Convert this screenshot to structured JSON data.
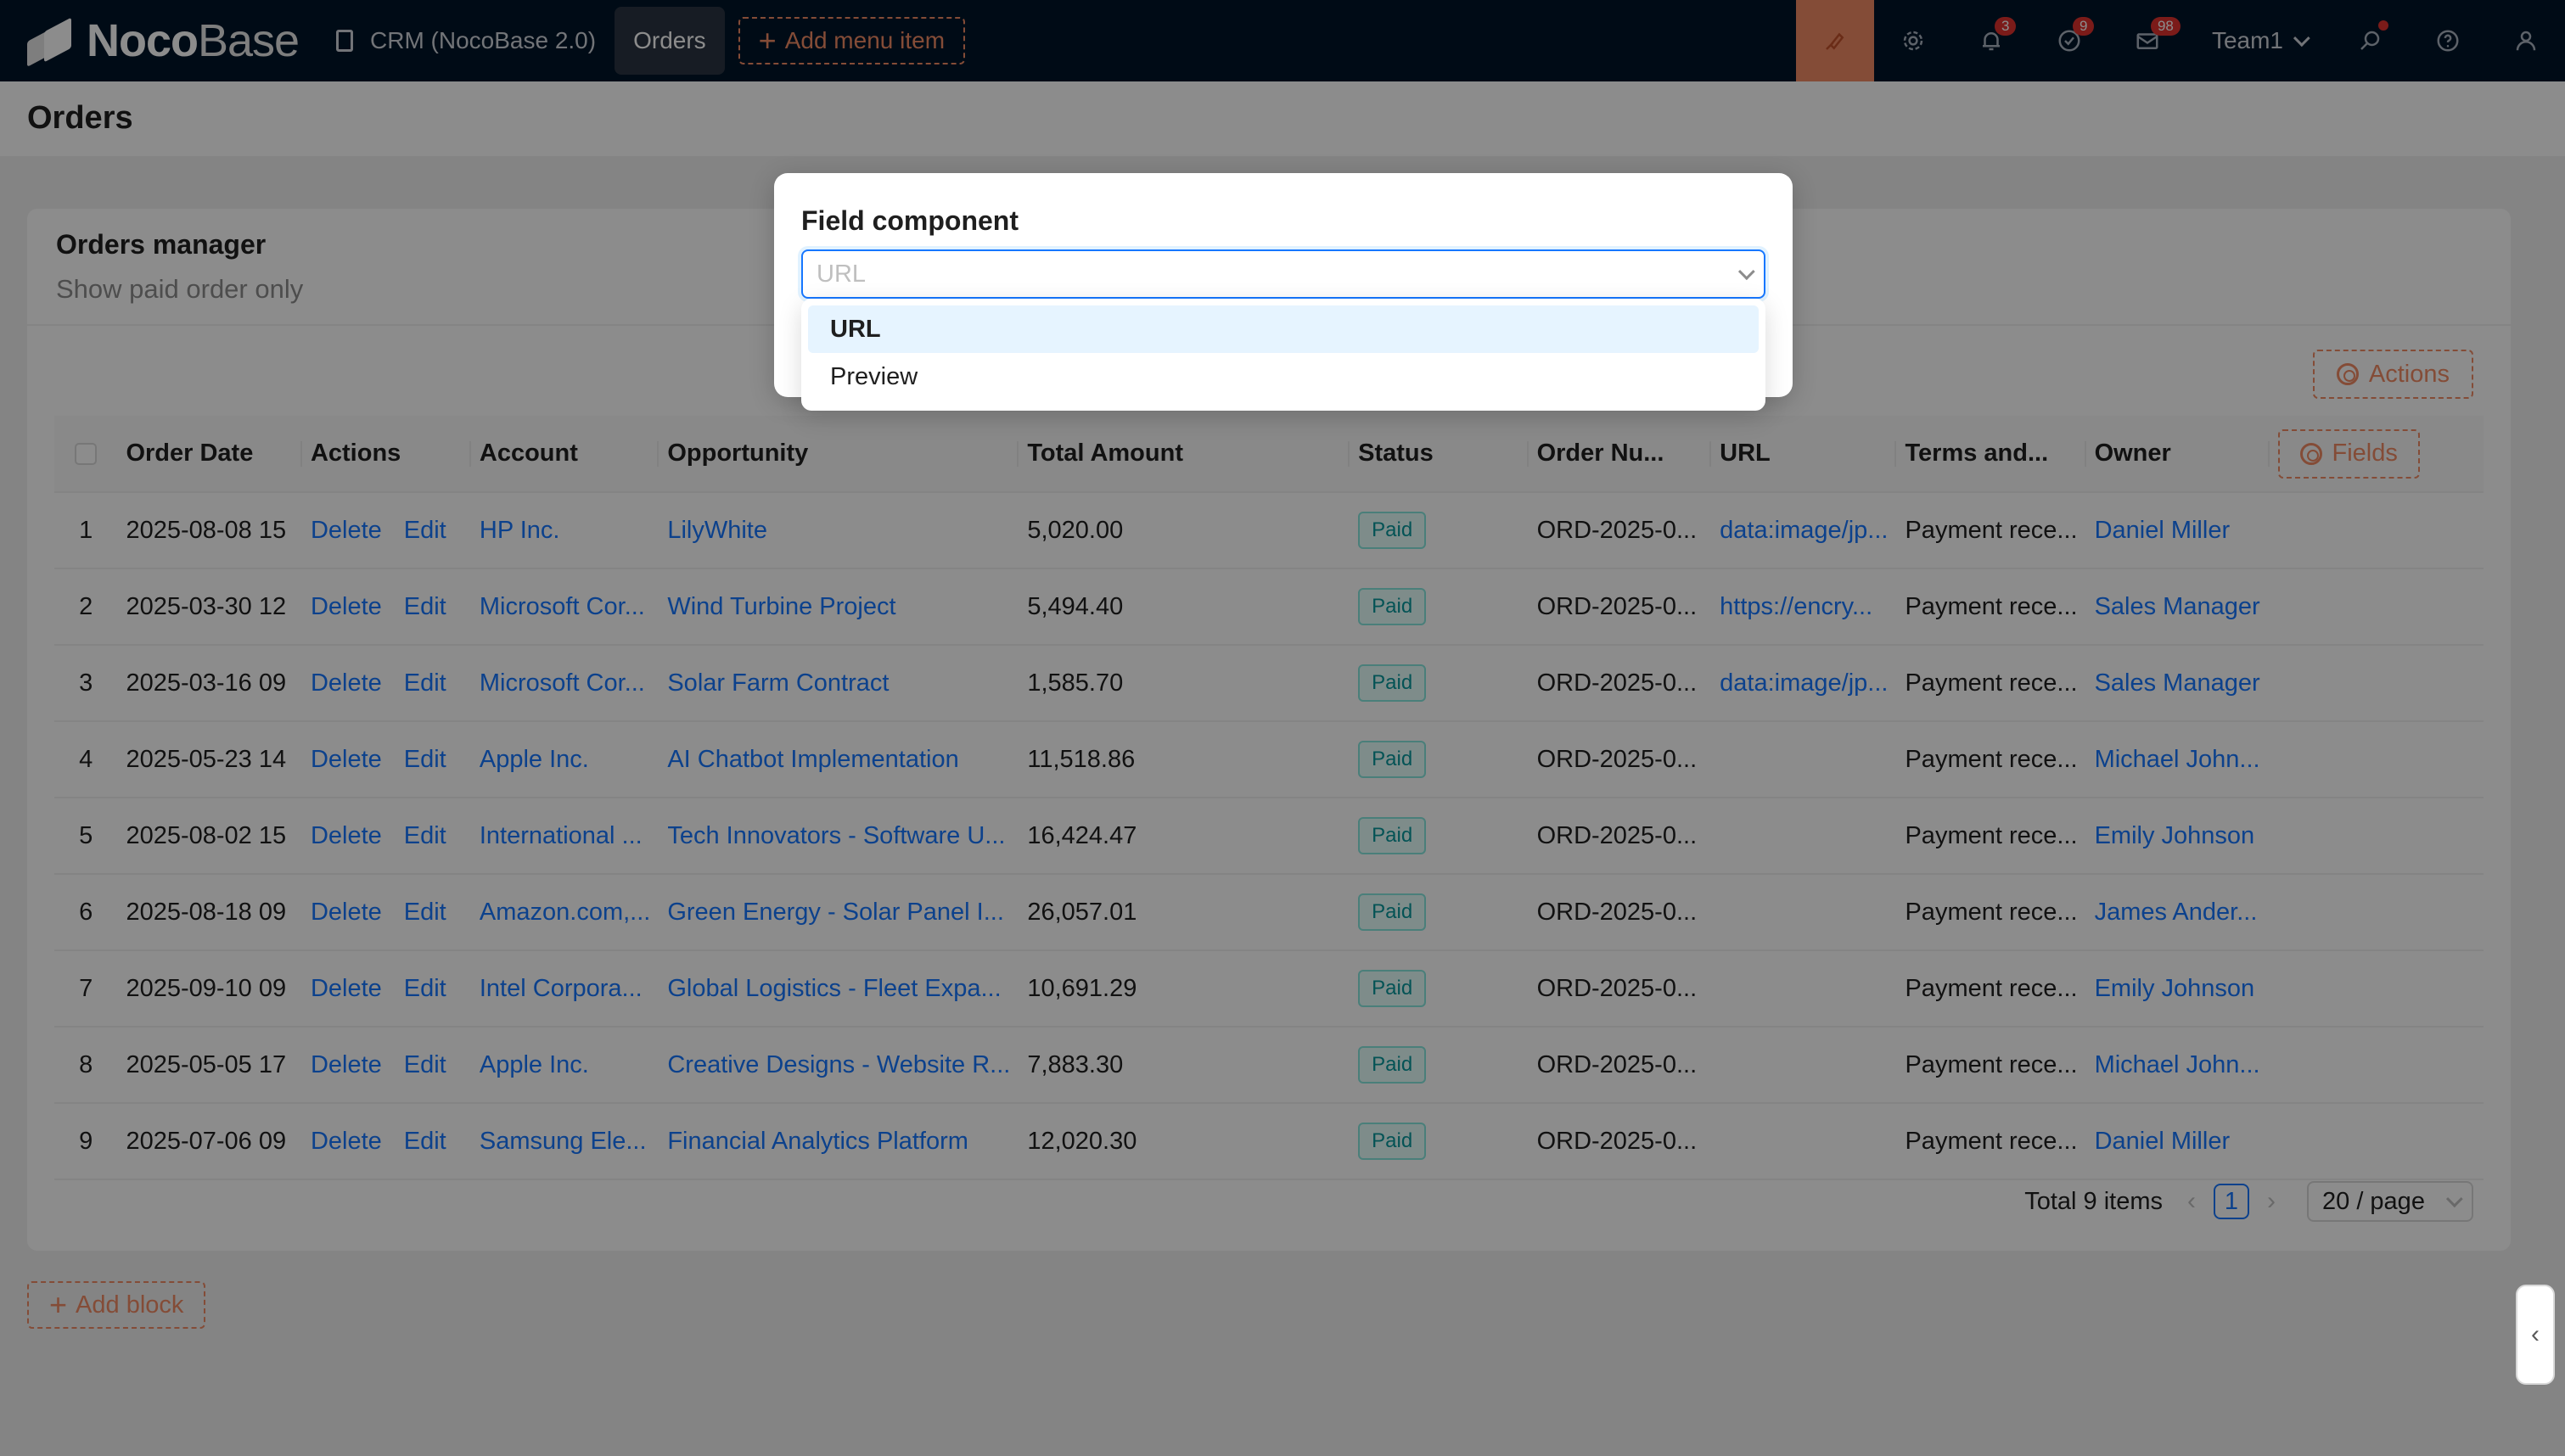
{
  "nav": {
    "logo_bold": "Noco",
    "logo_light": "Base",
    "menu": [
      {
        "label": "CRM (NocoBase 2.0)"
      },
      {
        "label": "Orders"
      }
    ],
    "add_menu_item": "Add menu item",
    "badges": {
      "notifications": "3",
      "tasks": "9",
      "messages": "98"
    },
    "team": "Team1",
    "accent_color": "#f18b64"
  },
  "page": {
    "title": "Orders"
  },
  "block": {
    "title": "Orders manager",
    "description": "Show paid order only",
    "actions_label": "Actions",
    "fields_label": "Fields"
  },
  "table": {
    "columns": [
      "Order Date",
      "Actions",
      "Account",
      "Opportunity",
      "Total Amount",
      "Status",
      "Order Nu...",
      "URL",
      "Terms and...",
      "Owner"
    ],
    "action_delete": "Delete",
    "action_edit": "Edit",
    "rows": [
      {
        "idx": "1",
        "date": "2025-08-08 15",
        "account": "HP Inc.",
        "opportunity": "LilyWhite",
        "amount": "5,020.00",
        "status": "Paid",
        "order_no": "ORD-2025-0...",
        "url": "data:image/jp...",
        "terms": "Payment rece...",
        "owner": "Daniel Miller"
      },
      {
        "idx": "2",
        "date": "2025-03-30 12",
        "account": "Microsoft Cor...",
        "opportunity": "Wind Turbine Project",
        "amount": "5,494.40",
        "status": "Paid",
        "order_no": "ORD-2025-0...",
        "url": "https://encry...",
        "terms": "Payment rece...",
        "owner": "Sales Manager"
      },
      {
        "idx": "3",
        "date": "2025-03-16 09",
        "account": "Microsoft Cor...",
        "opportunity": "Solar Farm Contract",
        "amount": "1,585.70",
        "status": "Paid",
        "order_no": "ORD-2025-0...",
        "url": "data:image/jp...",
        "terms": "Payment rece...",
        "owner": "Sales Manager"
      },
      {
        "idx": "4",
        "date": "2025-05-23 14",
        "account": "Apple Inc.",
        "opportunity": "AI Chatbot Implementation",
        "amount": "11,518.86",
        "status": "Paid",
        "order_no": "ORD-2025-0...",
        "url": "",
        "terms": "Payment rece...",
        "owner": "Michael John..."
      },
      {
        "idx": "5",
        "date": "2025-08-02 15",
        "account": "International ...",
        "opportunity": "Tech Innovators - Software U...",
        "amount": "16,424.47",
        "status": "Paid",
        "order_no": "ORD-2025-0...",
        "url": "",
        "terms": "Payment rece...",
        "owner": "Emily Johnson"
      },
      {
        "idx": "6",
        "date": "2025-08-18 09",
        "account": "Amazon.com,...",
        "opportunity": "Green Energy - Solar Panel I...",
        "amount": "26,057.01",
        "status": "Paid",
        "order_no": "ORD-2025-0...",
        "url": "",
        "terms": "Payment rece...",
        "owner": "James Ander..."
      },
      {
        "idx": "7",
        "date": "2025-09-10 09",
        "account": "Intel Corpora...",
        "opportunity": "Global Logistics - Fleet Expa...",
        "amount": "10,691.29",
        "status": "Paid",
        "order_no": "ORD-2025-0...",
        "url": "",
        "terms": "Payment rece...",
        "owner": "Emily Johnson"
      },
      {
        "idx": "8",
        "date": "2025-05-05 17",
        "account": "Apple Inc.",
        "opportunity": "Creative Designs - Website R...",
        "amount": "7,883.30",
        "status": "Paid",
        "order_no": "ORD-2025-0...",
        "url": "",
        "terms": "Payment rece...",
        "owner": "Michael John..."
      },
      {
        "idx": "9",
        "date": "2025-07-06 09",
        "account": "Samsung Ele...",
        "opportunity": "Financial Analytics Platform",
        "amount": "12,020.30",
        "status": "Paid",
        "order_no": "ORD-2025-0...",
        "url": "",
        "terms": "Payment rece...",
        "owner": "Daniel Miller"
      }
    ]
  },
  "pagination": {
    "total": "Total 9 items",
    "current": "1",
    "page_size": "20 / page"
  },
  "add_block": "Add block",
  "modal": {
    "label": "Field component",
    "placeholder": "URL",
    "options": [
      "URL",
      "Preview"
    ]
  }
}
